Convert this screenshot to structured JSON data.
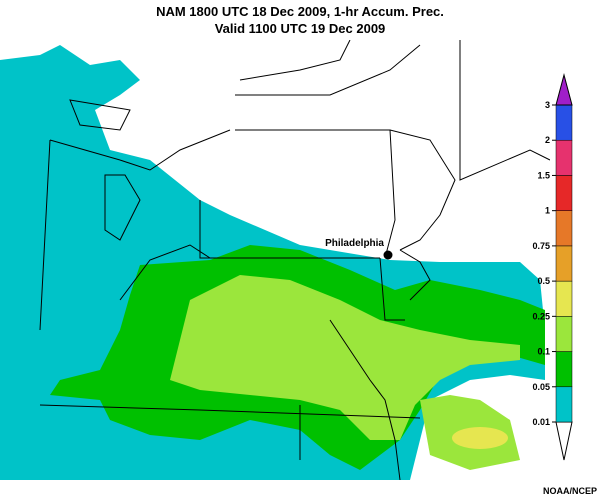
{
  "header": {
    "title": "NAM 1800 UTC  18 Dec 2009, 1-hr Accum. Prec.",
    "subtitle": "Valid 1100 UTC  19 Dec 2009"
  },
  "map": {
    "city": "Philadelphia"
  },
  "colorbar": {
    "labels": [
      "0.01",
      "0.05",
      "0.1",
      "0.25",
      "0.5",
      "0.75",
      "1",
      "1.5",
      "2",
      "3"
    ],
    "colors": [
      "#ffffff",
      "#00c3c8",
      "#00c000",
      "#9be63c",
      "#e6e650",
      "#e6a028",
      "#e67828",
      "#e62828",
      "#e6326e",
      "#2850e6",
      "#a01ec8"
    ]
  },
  "credit": "NOAA/NCEP"
}
